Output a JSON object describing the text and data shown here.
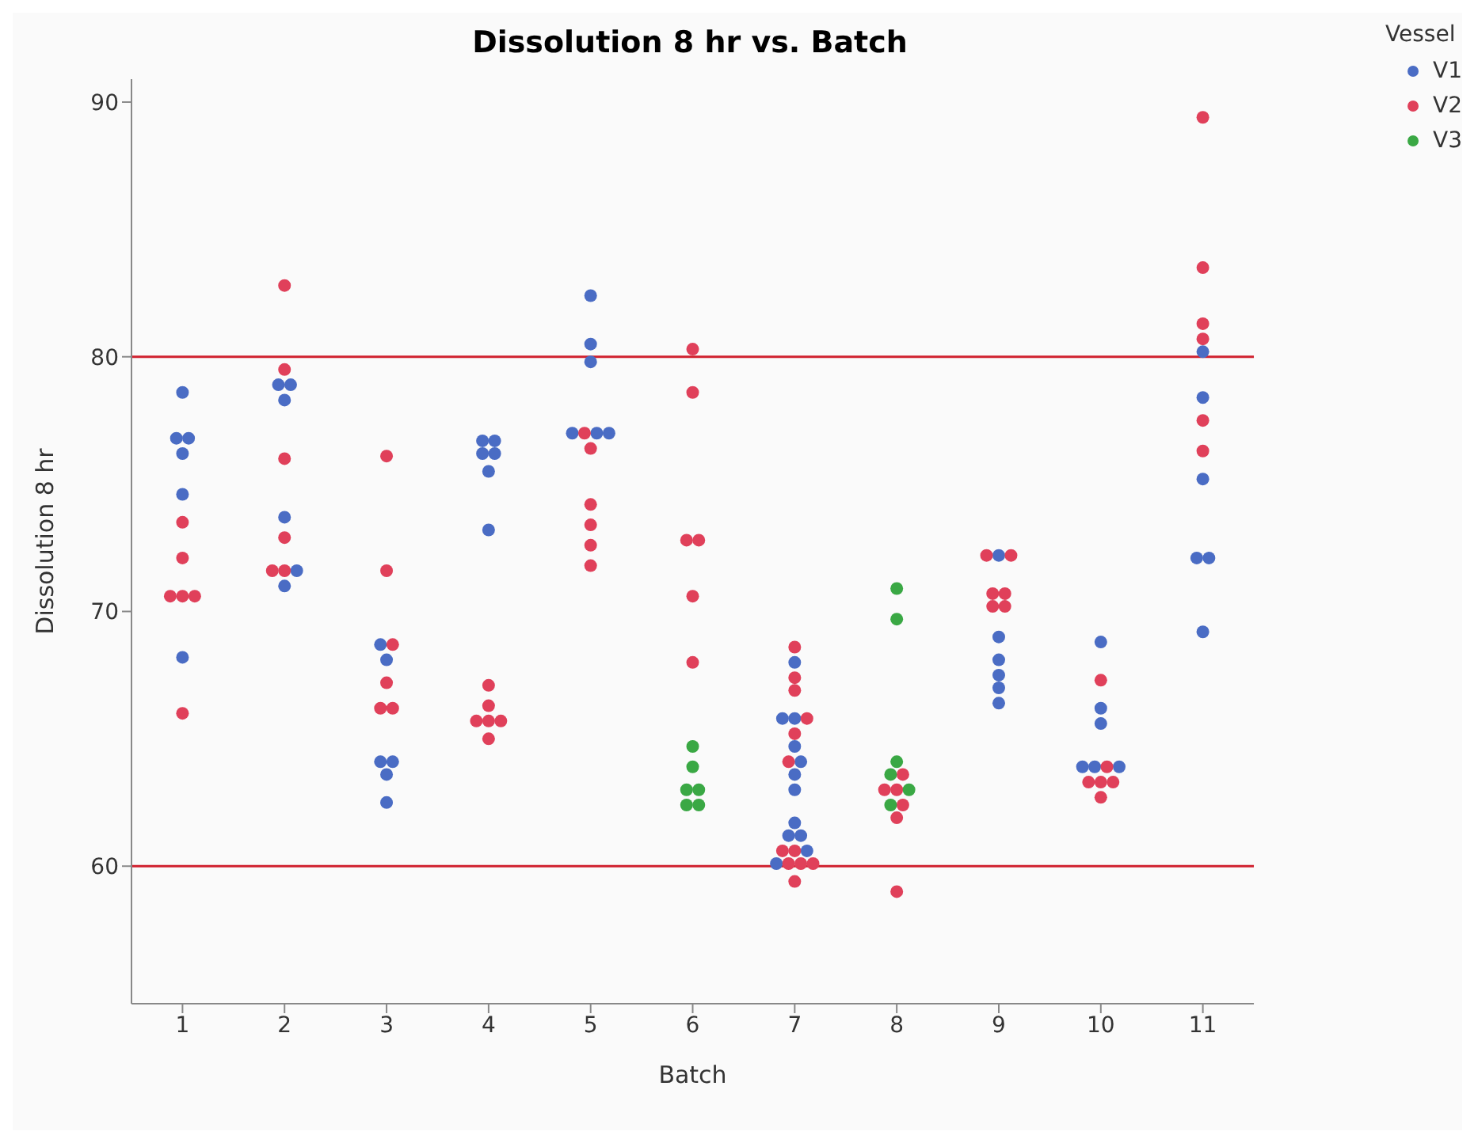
{
  "chart_data": {
    "type": "scatter",
    "title": "Dissolution 8 hr vs. Batch",
    "xlabel": "Batch",
    "ylabel": "Dissolution 8 hr",
    "legend_title": "Vessel",
    "legend": "top right",
    "marker": "circle",
    "grid": false,
    "xlim": [
      0.5,
      11.5
    ],
    "xticks": [
      1,
      2,
      3,
      4,
      5,
      6,
      7,
      8,
      9,
      10,
      11
    ],
    "ylim": [
      54.6,
      90.9
    ],
    "yticks": [
      60,
      70,
      80,
      90
    ],
    "ref_lines": [
      {
        "axis": "y",
        "value": 80,
        "color": "#d0202e"
      },
      {
        "axis": "y",
        "value": 60,
        "color": "#d0202e"
      }
    ],
    "series": [
      {
        "name": "V1",
        "color": "#4a6cc4",
        "x": [
          1,
          0.94,
          1.06,
          1,
          1,
          1,
          1.94,
          2.06,
          2,
          2,
          2.12,
          2,
          2.94,
          3,
          2.94,
          3.06,
          3,
          3,
          3.94,
          4.06,
          3.94,
          4.06,
          4,
          4,
          5,
          5,
          5,
          4.82,
          5.06,
          5.18,
          7,
          6.88,
          7,
          7,
          7.06,
          7,
          7,
          7,
          6.94,
          7.06,
          7.12,
          6.82,
          9,
          9,
          9,
          9,
          9,
          9,
          10,
          10,
          10,
          9.82,
          9.94,
          10.18,
          11,
          11,
          11,
          10.94,
          11.06,
          11
        ],
        "values": [
          78.6,
          76.8,
          76.8,
          76.2,
          74.6,
          68.2,
          78.9,
          78.9,
          78.3,
          73.7,
          71.6,
          71.0,
          68.7,
          68.1,
          64.1,
          64.1,
          63.6,
          62.5,
          76.7,
          76.7,
          76.2,
          76.2,
          75.5,
          73.2,
          82.4,
          80.5,
          79.8,
          77.0,
          77.0,
          77.0,
          68.0,
          65.8,
          65.8,
          64.7,
          64.1,
          63.6,
          63.0,
          61.7,
          61.2,
          61.2,
          60.6,
          60.1,
          72.2,
          69.0,
          68.1,
          67.5,
          67.0,
          66.4,
          68.8,
          66.2,
          65.6,
          63.9,
          63.9,
          63.9,
          80.2,
          78.4,
          75.2,
          72.1,
          72.1,
          69.2
        ]
      },
      {
        "name": "V2",
        "color": "#e0405a",
        "x": [
          1,
          1,
          0.88,
          1,
          1.12,
          1,
          2,
          2,
          2,
          2,
          1.88,
          2,
          3,
          3,
          3.06,
          3,
          2.94,
          3.06,
          4,
          4,
          3.88,
          4,
          4.12,
          4,
          4.94,
          5,
          5,
          5,
          5,
          5,
          6,
          6,
          5.94,
          6.06,
          6,
          6,
          7,
          7,
          7,
          7.12,
          7,
          6.94,
          6.88,
          7,
          6.94,
          7.06,
          7.18,
          7,
          8.06,
          7.88,
          8,
          8.06,
          8,
          8,
          8.88,
          9.12,
          8.94,
          9.06,
          8.94,
          9.06,
          10,
          10.06,
          9.88,
          10,
          10.12,
          10,
          11,
          11,
          11,
          11,
          11,
          11
        ],
        "values": [
          73.5,
          72.1,
          70.6,
          70.6,
          70.6,
          66.0,
          82.8,
          79.5,
          76.0,
          72.9,
          71.6,
          71.6,
          76.1,
          71.6,
          68.7,
          67.2,
          66.2,
          66.2,
          67.1,
          66.3,
          65.7,
          65.7,
          65.7,
          65.0,
          77.0,
          76.4,
          74.2,
          73.4,
          72.6,
          71.8,
          80.3,
          78.6,
          72.8,
          72.8,
          70.6,
          68.0,
          68.6,
          67.4,
          66.9,
          65.8,
          65.2,
          64.1,
          60.6,
          60.6,
          60.1,
          60.1,
          60.1,
          59.4,
          63.6,
          63.0,
          63.0,
          62.4,
          61.9,
          59.0,
          72.2,
          72.2,
          70.7,
          70.7,
          70.2,
          70.2,
          67.3,
          63.9,
          63.3,
          63.3,
          63.3,
          62.7,
          89.4,
          83.5,
          81.3,
          80.7,
          77.5,
          76.3
        ]
      },
      {
        "name": "V3",
        "color": "#3aa844",
        "x": [
          6,
          6,
          5.94,
          6.06,
          5.94,
          6.06,
          8,
          8,
          8,
          7.94,
          8.12,
          7.94
        ],
        "values": [
          64.7,
          63.9,
          63.0,
          63.0,
          62.4,
          62.4,
          70.9,
          69.7,
          64.1,
          63.6,
          63.0,
          62.4
        ]
      }
    ]
  }
}
